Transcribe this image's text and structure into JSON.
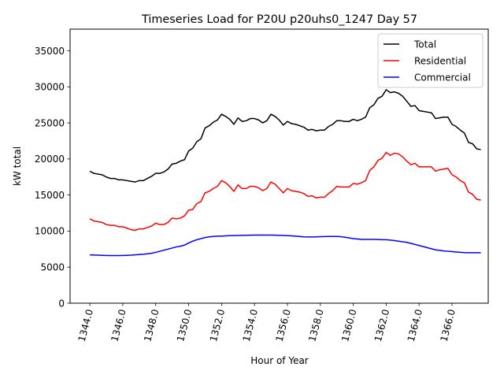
{
  "chart_data": {
    "type": "line",
    "title": "Timeseries Load for P20U p20uhs0_1247  Day 57",
    "xlabel": "Hour of Year",
    "ylabel": "kW total",
    "xlim": [
      1342.8,
      1368.2
    ],
    "ylim": [
      0,
      38000
    ],
    "xticks": [
      1344,
      1346,
      1348,
      1350,
      1352,
      1354,
      1356,
      1358,
      1360,
      1362,
      1364,
      1366
    ],
    "xtick_labels": [
      "1344.0",
      "1346.0",
      "1348.0",
      "1350.0",
      "1352.0",
      "1354.0",
      "1356.0",
      "1358.0",
      "1360.0",
      "1362.0",
      "1364.0",
      "1366.0"
    ],
    "yticks": [
      0,
      5000,
      10000,
      15000,
      20000,
      25000,
      30000,
      35000
    ],
    "ytick_labels": [
      "0",
      "5000",
      "10000",
      "15000",
      "20000",
      "25000",
      "30000",
      "35000"
    ],
    "legend_position": "top-right",
    "x": [
      1344.0,
      1344.25,
      1344.5,
      1344.75,
      1345.0,
      1345.25,
      1345.5,
      1345.75,
      1346.0,
      1346.25,
      1346.5,
      1346.75,
      1347.0,
      1347.25,
      1347.5,
      1347.75,
      1348.0,
      1348.25,
      1348.5,
      1348.75,
      1349.0,
      1349.25,
      1349.5,
      1349.75,
      1350.0,
      1350.25,
      1350.5,
      1350.75,
      1351.0,
      1351.25,
      1351.5,
      1351.75,
      1352.0,
      1352.25,
      1352.5,
      1352.75,
      1353.0,
      1353.25,
      1353.5,
      1353.75,
      1354.0,
      1354.25,
      1354.5,
      1354.75,
      1355.0,
      1355.25,
      1355.5,
      1355.75,
      1356.0,
      1356.25,
      1356.5,
      1356.75,
      1357.0,
      1357.25,
      1357.5,
      1357.75,
      1358.0,
      1358.25,
      1358.5,
      1358.75,
      1359.0,
      1359.25,
      1359.5,
      1359.75,
      1360.0,
      1360.25,
      1360.5,
      1360.75,
      1361.0,
      1361.25,
      1361.5,
      1361.75,
      1362.0,
      1362.25,
      1362.5,
      1362.75,
      1363.0,
      1363.25,
      1363.5,
      1363.75,
      1364.0,
      1364.25,
      1364.5,
      1364.75,
      1365.0,
      1365.25,
      1365.5,
      1365.75,
      1366.0,
      1366.25,
      1366.5,
      1366.75,
      1367.0,
      1367.25,
      1367.5,
      1367.75
    ],
    "series": [
      {
        "name": "Total",
        "color": "#000000",
        "values": [
          18300,
          18000,
          17900,
          17800,
          17500,
          17300,
          17300,
          17100,
          17100,
          17000,
          16900,
          16800,
          17000,
          17000,
          17300,
          17600,
          18000,
          18000,
          18200,
          18600,
          19300,
          19400,
          19700,
          19900,
          21100,
          21500,
          22400,
          22800,
          24300,
          24600,
          25100,
          25400,
          26200,
          25900,
          25500,
          24800,
          25700,
          25200,
          25300,
          25600,
          25600,
          25400,
          25000,
          25300,
          26200,
          25900,
          25400,
          24700,
          25200,
          24900,
          24800,
          24600,
          24400,
          24000,
          24100,
          23900,
          24000,
          24000,
          24500,
          24800,
          25300,
          25300,
          25200,
          25200,
          25500,
          25300,
          25500,
          25800,
          27100,
          27500,
          28400,
          28700,
          29600,
          29200,
          29300,
          29100,
          28700,
          28000,
          27300,
          27400,
          26700,
          26600,
          26500,
          26400,
          25600,
          25700,
          25800,
          25800,
          24800,
          24500,
          24000,
          23600,
          22300,
          22100,
          21400,
          21300
        ]
      },
      {
        "name": "Residential",
        "color": "#ff0000",
        "values": [
          11700,
          11400,
          11300,
          11200,
          10900,
          10800,
          10800,
          10600,
          10600,
          10400,
          10200,
          10100,
          10300,
          10300,
          10500,
          10700,
          11100,
          10900,
          10900,
          11200,
          11800,
          11700,
          11800,
          12100,
          12900,
          13000,
          13800,
          14100,
          15300,
          15500,
          15900,
          16200,
          17000,
          16700,
          16200,
          15500,
          16400,
          15900,
          15900,
          16200,
          16200,
          16000,
          15600,
          15900,
          16800,
          16500,
          15900,
          15300,
          15900,
          15600,
          15500,
          15400,
          15200,
          14800,
          14900,
          14600,
          14700,
          14700,
          15200,
          15600,
          16200,
          16100,
          16100,
          16100,
          16600,
          16500,
          16700,
          17000,
          18400,
          18900,
          19800,
          20100,
          20900,
          20500,
          20800,
          20700,
          20300,
          19700,
          19200,
          19400,
          18900,
          18900,
          18900,
          18900,
          18300,
          18500,
          18600,
          18700,
          17800,
          17500,
          17000,
          16700,
          15400,
          15100,
          14400,
          14300
        ]
      },
      {
        "name": "Commercial",
        "color": "#0000ff",
        "values": [
          6700,
          6680,
          6660,
          6640,
          6620,
          6600,
          6600,
          6600,
          6620,
          6640,
          6660,
          6700,
          6740,
          6780,
          6850,
          6920,
          7050,
          7200,
          7350,
          7500,
          7650,
          7800,
          7900,
          8050,
          8350,
          8600,
          8800,
          8950,
          9100,
          9200,
          9250,
          9300,
          9300,
          9340,
          9360,
          9380,
          9390,
          9400,
          9420,
          9430,
          9440,
          9450,
          9450,
          9450,
          9440,
          9430,
          9410,
          9390,
          9370,
          9340,
          9300,
          9250,
          9200,
          9180,
          9180,
          9200,
          9220,
          9240,
          9250,
          9250,
          9250,
          9220,
          9150,
          9050,
          8950,
          8900,
          8850,
          8840,
          8840,
          8840,
          8830,
          8800,
          8800,
          8750,
          8680,
          8600,
          8520,
          8440,
          8300,
          8150,
          8000,
          7850,
          7700,
          7550,
          7400,
          7320,
          7250,
          7200,
          7150,
          7100,
          7060,
          7020,
          7000,
          7000,
          7000,
          7000
        ]
      }
    ]
  }
}
